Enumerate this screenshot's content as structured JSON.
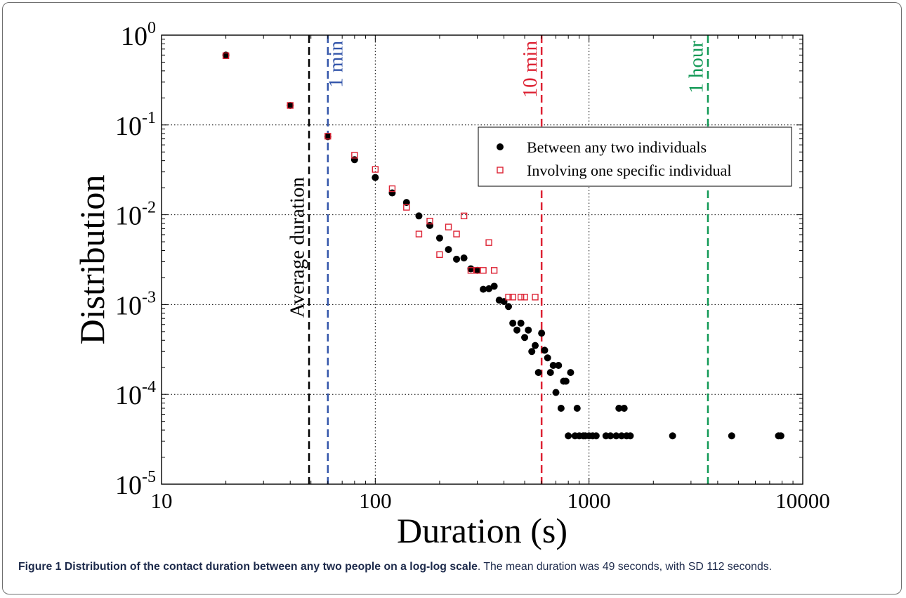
{
  "chart_data": {
    "type": "scatter",
    "xlabel": "Duration (s)",
    "ylabel": "Distribution",
    "xscale": "log",
    "yscale": "log",
    "xlim": [
      10,
      10000
    ],
    "ylim": [
      1e-05,
      1
    ],
    "grid": true,
    "legend_position": "upper-right",
    "x_ticks": [
      {
        "value": 10,
        "label": "10"
      },
      {
        "value": 100,
        "label": "100"
      },
      {
        "value": 1000,
        "label": "1000"
      },
      {
        "value": 10000,
        "label": "10000"
      }
    ],
    "y_ticks": [
      {
        "value": 1,
        "base": "10",
        "exp": "0"
      },
      {
        "value": 0.1,
        "base": "10",
        "exp": "-1"
      },
      {
        "value": 0.01,
        "base": "10",
        "exp": "-2"
      },
      {
        "value": 0.001,
        "base": "10",
        "exp": "-3"
      },
      {
        "value": 0.0001,
        "base": "10",
        "exp": "-4"
      },
      {
        "value": 1e-05,
        "base": "10",
        "exp": "-5"
      }
    ],
    "vlines": [
      {
        "x": 49,
        "label": "Average duration",
        "color": "#000000"
      },
      {
        "x": 60,
        "label": "1 min",
        "color": "#3355aa"
      },
      {
        "x": 600,
        "label": "10 min",
        "color": "#dd2233"
      },
      {
        "x": 3600,
        "label": "1 hour",
        "color": "#119955"
      }
    ],
    "series": [
      {
        "name": "Between any two individuals",
        "marker": "filled-circle",
        "color": "#000000",
        "points": [
          [
            20,
            0.6
          ],
          [
            40,
            0.165
          ],
          [
            60,
            0.074
          ],
          [
            80,
            0.041
          ],
          [
            100,
            0.026
          ],
          [
            120,
            0.0175
          ],
          [
            140,
            0.0137
          ],
          [
            160,
            0.0097
          ],
          [
            180,
            0.0076
          ],
          [
            200,
            0.0055
          ],
          [
            220,
            0.0041
          ],
          [
            240,
            0.0032
          ],
          [
            260,
            0.0033
          ],
          [
            280,
            0.0025
          ],
          [
            300,
            0.0024
          ],
          [
            320,
            0.00148
          ],
          [
            340,
            0.0015
          ],
          [
            360,
            0.0016
          ],
          [
            380,
            0.00112
          ],
          [
            400,
            0.00108
          ],
          [
            420,
            0.00095
          ],
          [
            440,
            0.00062
          ],
          [
            460,
            0.00052
          ],
          [
            480,
            0.00062
          ],
          [
            500,
            0.00043
          ],
          [
            520,
            0.00052
          ],
          [
            540,
            0.0003
          ],
          [
            560,
            0.00035
          ],
          [
            580,
            0.000175
          ],
          [
            600,
            0.00048
          ],
          [
            620,
            0.00031
          ],
          [
            640,
            0.000255
          ],
          [
            660,
            0.000175
          ],
          [
            680,
            0.00021
          ],
          [
            700,
            0.000105
          ],
          [
            720,
            0.00021
          ],
          [
            740,
            7e-05
          ],
          [
            760,
            0.00014
          ],
          [
            780,
            0.00014
          ],
          [
            800,
            3.45e-05
          ],
          [
            820,
            0.000175
          ],
          [
            860,
            3.45e-05
          ],
          [
            880,
            7e-05
          ],
          [
            900,
            3.45e-05
          ],
          [
            940,
            3.45e-05
          ],
          [
            960,
            3.45e-05
          ],
          [
            1000,
            3.45e-05
          ],
          [
            1040,
            3.45e-05
          ],
          [
            1080,
            3.45e-05
          ],
          [
            1200,
            3.45e-05
          ],
          [
            1260,
            3.45e-05
          ],
          [
            1340,
            3.45e-05
          ],
          [
            1380,
            7e-05
          ],
          [
            1420,
            3.45e-05
          ],
          [
            1460,
            7e-05
          ],
          [
            1500,
            3.45e-05
          ],
          [
            1560,
            3.45e-05
          ],
          [
            2460,
            3.45e-05
          ],
          [
            4650,
            3.45e-05
          ],
          [
            7700,
            3.45e-05
          ],
          [
            7900,
            3.45e-05
          ]
        ]
      },
      {
        "name": "Involving one specific individual",
        "marker": "open-square",
        "color": "#dd2233",
        "points": [
          [
            20,
            0.59
          ],
          [
            40,
            0.165
          ],
          [
            60,
            0.075
          ],
          [
            80,
            0.046
          ],
          [
            100,
            0.032
          ],
          [
            120,
            0.0195
          ],
          [
            140,
            0.0121
          ],
          [
            160,
            0.0061
          ],
          [
            180,
            0.0085
          ],
          [
            200,
            0.0036
          ],
          [
            220,
            0.0073
          ],
          [
            240,
            0.0061
          ],
          [
            260,
            0.0097
          ],
          [
            280,
            0.0024
          ],
          [
            300,
            0.0024
          ],
          [
            320,
            0.0024
          ],
          [
            340,
            0.0049
          ],
          [
            360,
            0.0024
          ],
          [
            420,
            0.00121
          ],
          [
            440,
            0.00121
          ],
          [
            480,
            0.00121
          ],
          [
            500,
            0.00121
          ],
          [
            560,
            0.00121
          ]
        ]
      }
    ]
  },
  "caption": {
    "lead": "Figure 1 Distribution of the contact duration between any two people on a log-log scale",
    "rest": ". The mean duration was 49 seconds, with SD 112 seconds."
  }
}
